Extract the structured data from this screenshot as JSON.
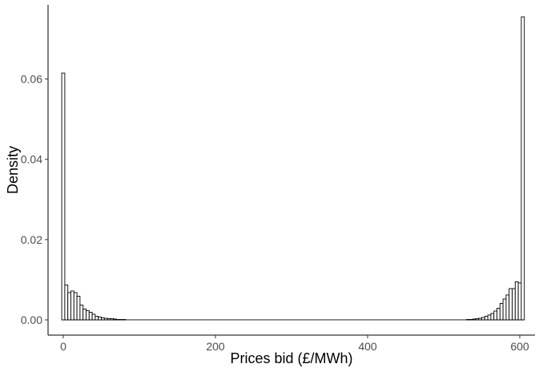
{
  "chart_data": {
    "type": "bar",
    "subtype": "histogram",
    "title": "",
    "xlabel": "Prices bid (£/MWh)",
    "ylabel": "Density",
    "xlim": [
      -20,
      620
    ],
    "ylim": [
      -0.0038,
      0.0785
    ],
    "bin_width": 4,
    "grid": false,
    "legend": "none",
    "x_ticks": [
      {
        "value": 0,
        "label": "0"
      },
      {
        "value": 200,
        "label": "200"
      },
      {
        "value": 400,
        "label": "400"
      },
      {
        "value": 600,
        "label": "600"
      }
    ],
    "y_ticks": [
      {
        "value": 0.0,
        "label": "0.00"
      },
      {
        "value": 0.02,
        "label": "0.02"
      },
      {
        "value": 0.04,
        "label": "0.04"
      },
      {
        "value": 0.06,
        "label": "0.06"
      }
    ],
    "bins": [
      {
        "start": -2,
        "end": 2,
        "density": 0.0615
      },
      {
        "start": 2,
        "end": 6,
        "density": 0.0087
      },
      {
        "start": 6,
        "end": 10,
        "density": 0.0068
      },
      {
        "start": 10,
        "end": 14,
        "density": 0.0072
      },
      {
        "start": 14,
        "end": 18,
        "density": 0.0068
      },
      {
        "start": 18,
        "end": 22,
        "density": 0.0059
      },
      {
        "start": 22,
        "end": 26,
        "density": 0.0037
      },
      {
        "start": 26,
        "end": 30,
        "density": 0.0027
      },
      {
        "start": 30,
        "end": 34,
        "density": 0.0023
      },
      {
        "start": 34,
        "end": 38,
        "density": 0.0019
      },
      {
        "start": 38,
        "end": 42,
        "density": 0.0014
      },
      {
        "start": 42,
        "end": 46,
        "density": 0.0009
      },
      {
        "start": 46,
        "end": 50,
        "density": 0.0007
      },
      {
        "start": 50,
        "end": 54,
        "density": 0.0005
      },
      {
        "start": 54,
        "end": 58,
        "density": 0.0004
      },
      {
        "start": 58,
        "end": 62,
        "density": 0.0003
      },
      {
        "start": 62,
        "end": 66,
        "density": 0.0003
      },
      {
        "start": 66,
        "end": 70,
        "density": 0.0002
      },
      {
        "start": 70,
        "end": 74,
        "density": 0.0001
      },
      {
        "start": 74,
        "end": 78,
        "density": 0.0001
      },
      {
        "start": 78,
        "end": 82,
        "density": 0.0001
      },
      {
        "start": 530,
        "end": 534,
        "density": 0.0001
      },
      {
        "start": 534,
        "end": 538,
        "density": 0.0001
      },
      {
        "start": 538,
        "end": 542,
        "density": 0.0002
      },
      {
        "start": 542,
        "end": 546,
        "density": 0.0003
      },
      {
        "start": 546,
        "end": 550,
        "density": 0.0004
      },
      {
        "start": 550,
        "end": 554,
        "density": 0.0006
      },
      {
        "start": 554,
        "end": 558,
        "density": 0.0009
      },
      {
        "start": 558,
        "end": 562,
        "density": 0.0012
      },
      {
        "start": 562,
        "end": 566,
        "density": 0.0016
      },
      {
        "start": 566,
        "end": 570,
        "density": 0.0022
      },
      {
        "start": 570,
        "end": 574,
        "density": 0.0029
      },
      {
        "start": 574,
        "end": 578,
        "density": 0.0041
      },
      {
        "start": 578,
        "end": 582,
        "density": 0.0052
      },
      {
        "start": 582,
        "end": 586,
        "density": 0.0062
      },
      {
        "start": 586,
        "end": 590,
        "density": 0.0078
      },
      {
        "start": 590,
        "end": 594,
        "density": 0.0078
      },
      {
        "start": 594,
        "end": 598,
        "density": 0.0095
      },
      {
        "start": 598,
        "end": 602,
        "density": 0.0092
      },
      {
        "start": 602,
        "end": 606,
        "density": 0.0755
      }
    ]
  }
}
